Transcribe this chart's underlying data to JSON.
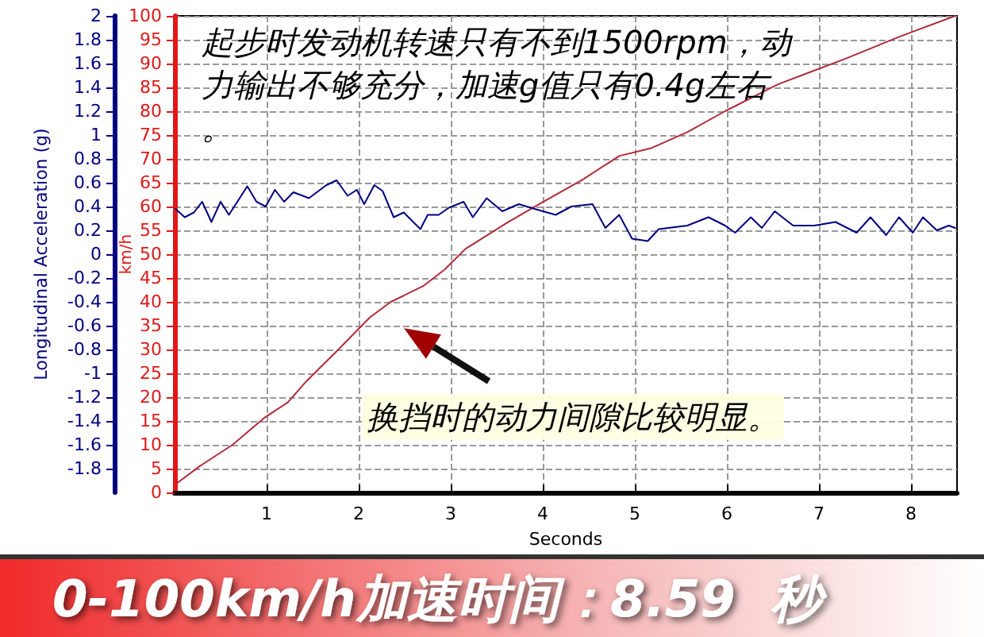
{
  "chart_data": {
    "type": "line",
    "title": "0-100km/h加速时间：8.59  秒",
    "xlabel": "Seconds",
    "ylabel": "km/h",
    "y2label": "Longitudinal Acceleration (g)",
    "xlim": [
      0,
      8.5
    ],
    "xticks": [
      1,
      2,
      3,
      4,
      5,
      6,
      7,
      8
    ],
    "ylim": [
      0,
      100
    ],
    "yticks": [
      0,
      5,
      10,
      15,
      20,
      25,
      30,
      35,
      40,
      45,
      50,
      55,
      60,
      65,
      70,
      75,
      80,
      85,
      90,
      95,
      100
    ],
    "y2lim": [
      -2,
      2
    ],
    "y2ticks": [
      -1.8,
      -1.6,
      -1.4,
      -1.2,
      -1,
      -0.8,
      -0.6,
      -0.4,
      -0.2,
      0,
      0.2,
      0.4,
      0.6,
      0.8,
      1,
      1.2,
      1.4,
      1.6,
      1.8,
      2
    ],
    "grid": true,
    "marker": "none",
    "line_style": "solid",
    "annotations": [
      "起步时发动机转速只有不到1500rpm，动力输出不够充分，加速g值只有0.4g左右。",
      "换挡时的动力间隙比较明显。"
    ],
    "series": [
      {
        "color": "#b02a3a",
        "x": [
          0.03,
          0.28,
          0.63,
          0.97,
          1.23,
          1.43,
          1.78,
          2.12,
          2.35,
          2.7,
          2.93,
          3.16,
          3.62,
          3.97,
          4.43,
          4.83,
          5.17,
          5.57,
          5.98,
          6.55,
          7.3,
          7.87,
          8.48
        ],
        "values": [
          2,
          5.6,
          10,
          15.6,
          18.9,
          23.3,
          30,
          36.7,
          40,
          43.3,
          46.7,
          51.1,
          56.7,
          60.6,
          65.6,
          70.6,
          72.2,
          75.6,
          80,
          85.6,
          91.1,
          95.6,
          100
        ]
      },
      {
        "color": "#000080",
        "axis": "y2",
        "x": [
          0.01,
          0.11,
          0.21,
          0.3,
          0.4,
          0.5,
          0.59,
          0.79,
          0.89,
          0.99,
          1.09,
          1.19,
          1.29,
          1.46,
          1.65,
          1.76,
          1.88,
          1.98,
          2.06,
          2.17,
          2.26,
          2.38,
          2.49,
          2.67,
          2.75,
          2.87,
          2.98,
          3.14,
          3.24,
          3.39,
          3.56,
          3.74,
          3.91,
          4.14,
          4.31,
          4.54,
          4.68,
          4.83,
          4.97,
          5.14,
          5.26,
          5.57,
          5.8,
          5.98,
          6.09,
          6.26,
          6.38,
          6.52,
          6.72,
          6.95,
          7.18,
          7.41,
          7.56,
          7.73,
          7.87,
          8.02,
          8.13,
          8.28,
          8.41,
          8.48
        ],
        "values": [
          0.38,
          0.31,
          0.35,
          0.44,
          0.27,
          0.44,
          0.33,
          0.57,
          0.44,
          0.4,
          0.54,
          0.44,
          0.52,
          0.47,
          0.58,
          0.62,
          0.49,
          0.54,
          0.42,
          0.58,
          0.53,
          0.31,
          0.35,
          0.21,
          0.33,
          0.33,
          0.39,
          0.44,
          0.31,
          0.47,
          0.36,
          0.42,
          0.38,
          0.33,
          0.4,
          0.42,
          0.22,
          0.33,
          0.13,
          0.11,
          0.21,
          0.24,
          0.31,
          0.24,
          0.18,
          0.31,
          0.22,
          0.36,
          0.24,
          0.24,
          0.27,
          0.18,
          0.31,
          0.16,
          0.31,
          0.18,
          0.31,
          0.2,
          0.24,
          0.22
        ]
      }
    ]
  }
}
